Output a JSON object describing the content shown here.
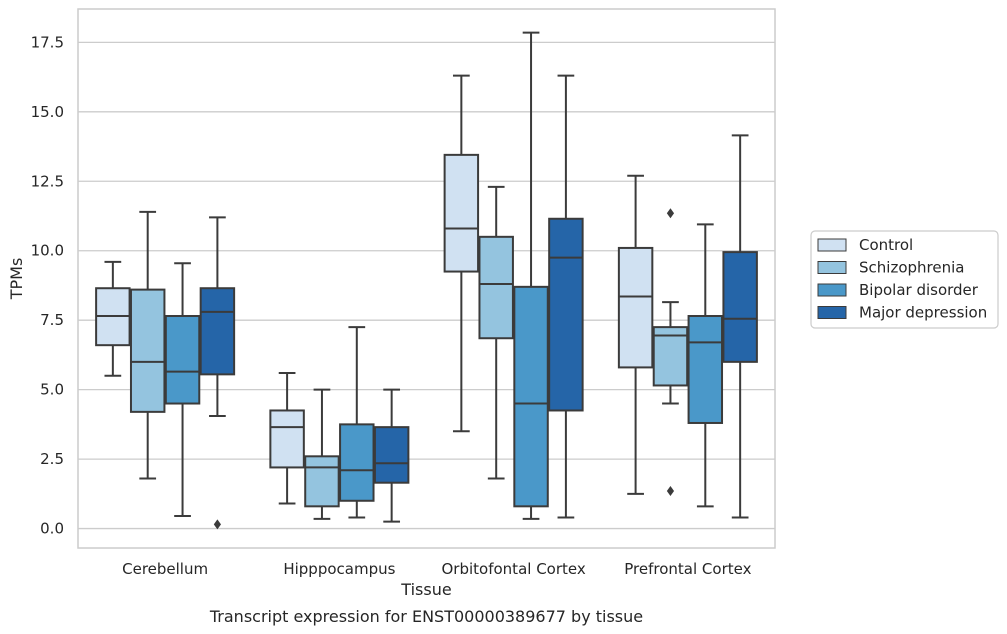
{
  "chart_data": {
    "type": "box",
    "caption": "Transcript expression for ENST00000389677 by tissue",
    "xlabel": "Tissue",
    "ylabel": "TPMs",
    "ylim": [
      -0.7,
      18.7
    ],
    "yticks": [
      0.0,
      2.5,
      5.0,
      7.5,
      10.0,
      12.5,
      15.0,
      17.5
    ],
    "ytick_labels": [
      "0.0",
      "2.5",
      "5.0",
      "7.5",
      "10.0",
      "12.5",
      "15.0",
      "17.5"
    ],
    "grid": true,
    "legend_position": "right",
    "categories": [
      "Cerebellum",
      "Hipppocampus",
      "Orbitofontal Cortex",
      "Prefrontal Cortex"
    ],
    "series": [
      {
        "name": "Control",
        "color": "#d0e1f2",
        "boxes": [
          {
            "whisker_low": 5.5,
            "q1": 6.6,
            "median": 7.65,
            "q3": 8.65,
            "whisker_high": 9.6,
            "outliers": []
          },
          {
            "whisker_low": 0.9,
            "q1": 2.2,
            "median": 3.65,
            "q3": 4.25,
            "whisker_high": 5.6,
            "outliers": []
          },
          {
            "whisker_low": 3.5,
            "q1": 9.25,
            "median": 10.8,
            "q3": 13.45,
            "whisker_high": 16.3,
            "outliers": []
          },
          {
            "whisker_low": 1.25,
            "q1": 5.8,
            "median": 8.35,
            "q3": 10.1,
            "whisker_high": 12.7,
            "outliers": []
          }
        ]
      },
      {
        "name": "Schizophrenia",
        "color": "#94c4df",
        "boxes": [
          {
            "whisker_low": 1.8,
            "q1": 4.2,
            "median": 6.0,
            "q3": 8.6,
            "whisker_high": 11.4,
            "outliers": []
          },
          {
            "whisker_low": 0.35,
            "q1": 0.8,
            "median": 2.2,
            "q3": 2.6,
            "whisker_high": 5.0,
            "outliers": []
          },
          {
            "whisker_low": 1.8,
            "q1": 6.85,
            "median": 8.8,
            "q3": 10.5,
            "whisker_high": 12.3,
            "outliers": []
          },
          {
            "whisker_low": 4.5,
            "q1": 5.15,
            "median": 6.95,
            "q3": 7.25,
            "whisker_high": 8.15,
            "outliers": [
              11.35,
              1.35
            ]
          }
        ]
      },
      {
        "name": "Bipolar disorder",
        "color": "#4a98c9",
        "boxes": [
          {
            "whisker_low": 0.45,
            "q1": 4.5,
            "median": 5.65,
            "q3": 7.65,
            "whisker_high": 9.55,
            "outliers": []
          },
          {
            "whisker_low": 0.4,
            "q1": 1.0,
            "median": 2.1,
            "q3": 3.75,
            "whisker_high": 7.25,
            "outliers": []
          },
          {
            "whisker_low": 0.35,
            "q1": 0.8,
            "median": 4.5,
            "q3": 8.7,
            "whisker_high": 17.85,
            "outliers": []
          },
          {
            "whisker_low": 0.8,
            "q1": 3.8,
            "median": 6.7,
            "q3": 7.65,
            "whisker_high": 10.95,
            "outliers": []
          }
        ]
      },
      {
        "name": "Major depression",
        "color": "#2565a8",
        "boxes": [
          {
            "whisker_low": 4.05,
            "q1": 5.55,
            "median": 7.8,
            "q3": 8.65,
            "whisker_high": 11.2,
            "outliers": [
              0.15
            ]
          },
          {
            "whisker_low": 0.25,
            "q1": 1.65,
            "median": 2.35,
            "q3": 3.65,
            "whisker_high": 5.0,
            "outliers": []
          },
          {
            "whisker_low": 0.4,
            "q1": 4.25,
            "median": 9.75,
            "q3": 11.15,
            "whisker_high": 16.3,
            "outliers": []
          },
          {
            "whisker_low": 0.4,
            "q1": 6.0,
            "median": 7.55,
            "q3": 9.95,
            "whisker_high": 14.15,
            "outliers": []
          }
        ]
      }
    ]
  }
}
